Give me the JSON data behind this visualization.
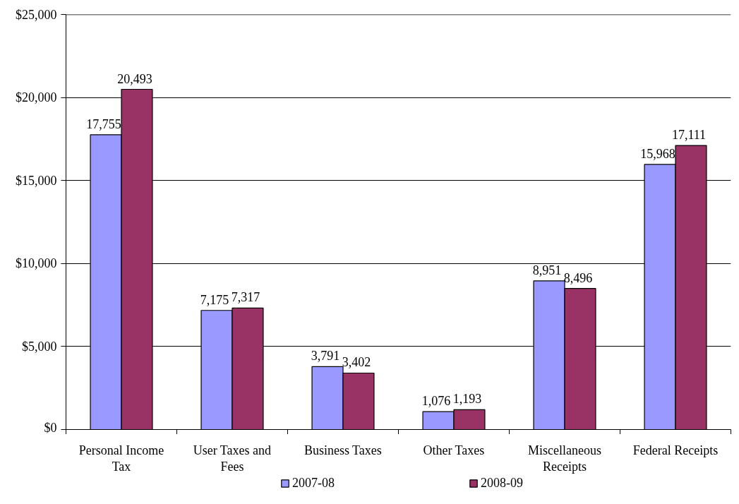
{
  "chart_data": {
    "type": "bar",
    "categories": [
      "Personal Income Tax",
      "User Taxes and Fees",
      "Business Taxes",
      "Other Taxes",
      "Miscellaneous Receipts",
      "Federal Receipts"
    ],
    "series": [
      {
        "name": "2007-08",
        "color": "#9999ff",
        "values": [
          17755,
          7175,
          3791,
          1076,
          8951,
          15968
        ],
        "value_labels": [
          "17,755",
          "7,175",
          "3,791",
          "1,076",
          "8,951",
          "15,968"
        ]
      },
      {
        "name": "2008-09",
        "color": "#993366",
        "values": [
          20493,
          7317,
          3402,
          1193,
          8496,
          17111
        ],
        "value_labels": [
          "20,493",
          "7,317",
          "3,402",
          "1,193",
          "8,496",
          "17,111"
        ]
      }
    ],
    "ylim": [
      0,
      25000
    ],
    "yticks": [
      {
        "value": 0,
        "label": "$0"
      },
      {
        "value": 5000,
        "label": "$5,000"
      },
      {
        "value": 10000,
        "label": "$10,000"
      },
      {
        "value": 15000,
        "label": "$15,000"
      },
      {
        "value": 20000,
        "label": "$20,000"
      },
      {
        "value": 25000,
        "label": "$25,000"
      }
    ],
    "grid": "y",
    "legend": "bottom"
  }
}
